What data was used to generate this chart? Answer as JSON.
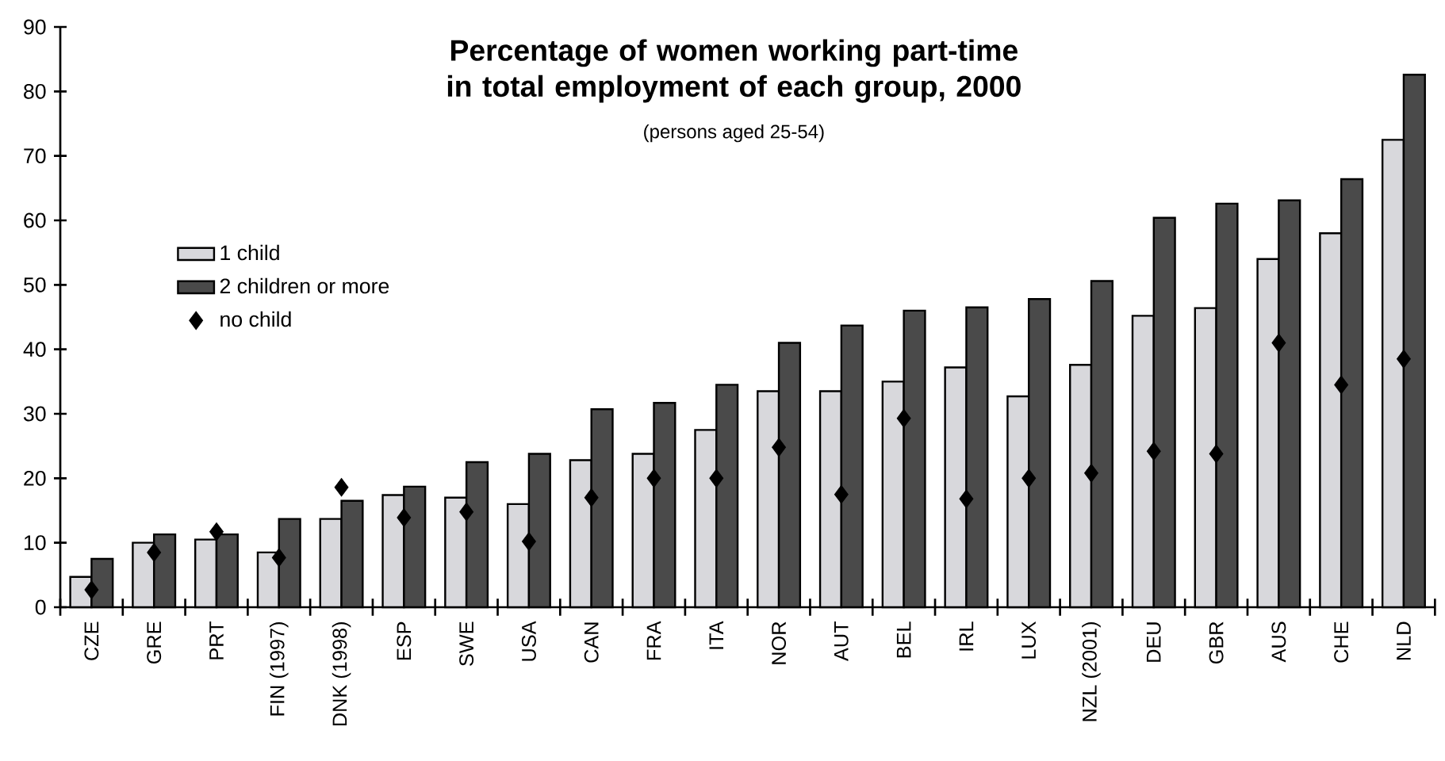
{
  "chart_data": {
    "type": "bar",
    "title": "Percentage of women working part-time in total employment of each group, 2000",
    "subtitle": "(persons aged 25-54)",
    "categories": [
      "CZE",
      "GRE",
      "PRT",
      "FIN (1997)",
      "DNK (1998)",
      "ESP",
      "SWE",
      "USA",
      "CAN",
      "FRA",
      "ITA",
      "NOR",
      "AUT",
      "BEL",
      "IRL",
      "LUX",
      "NZL (2001)",
      "DEU",
      "GBR",
      "AUS",
      "CHE",
      "NLD"
    ],
    "series": [
      {
        "name": "1 child",
        "color": "#d8d8dc",
        "values": [
          4.7,
          10,
          10.5,
          8.5,
          13.7,
          17.4,
          17,
          16,
          22.8,
          23.8,
          27.5,
          33.5,
          33.5,
          35,
          37.2,
          32.7,
          37.6,
          45.2,
          46.4,
          54,
          58,
          72.5
        ]
      },
      {
        "name": "2 children or more",
        "color": "#4a4a4a",
        "values": [
          7.5,
          11.3,
          11.3,
          13.7,
          16.5,
          18.7,
          22.5,
          23.8,
          30.7,
          31.7,
          34.5,
          41,
          43.7,
          46,
          46.5,
          47.8,
          50.6,
          60.4,
          62.6,
          63.1,
          66.4,
          82.6
        ]
      },
      {
        "name": "no child",
        "type": "scatter",
        "marker": "diamond",
        "color": "#000000",
        "values": [
          2.7,
          8.5,
          11.7,
          7.7,
          18.6,
          13.9,
          14.8,
          10.2,
          17,
          20,
          20,
          24.8,
          17.5,
          29.3,
          16.8,
          20,
          20.8,
          24.2,
          23.8,
          41,
          34.5,
          38.5
        ]
      }
    ],
    "ylim": [
      0,
      90
    ],
    "yticks": [
      0,
      10,
      20,
      30,
      40,
      50,
      60,
      70,
      80,
      90
    ],
    "grid": false,
    "legend": "left"
  }
}
